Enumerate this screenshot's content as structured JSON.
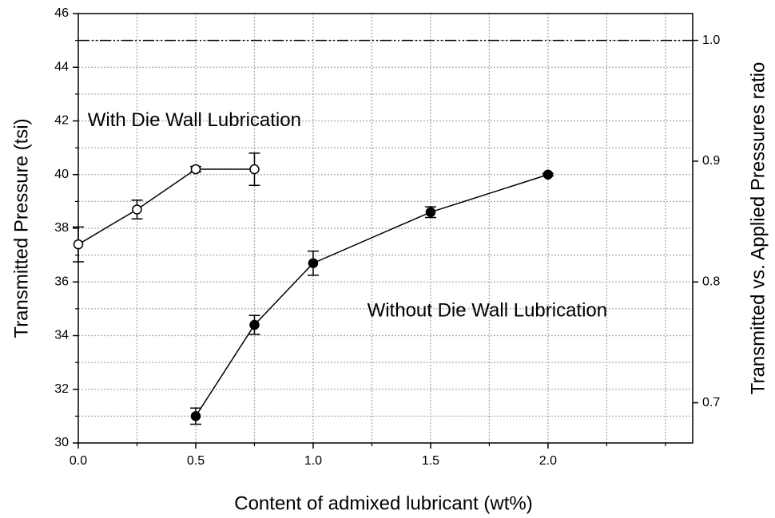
{
  "chart_data": {
    "type": "line",
    "xlabel": "Content of admixed lubricant (wt%)",
    "ylabel": "Transmitted Pressure (tsi)",
    "y2label": "Transmitted vs. Applied Pressures ratio",
    "xlim": [
      0,
      2.616
    ],
    "xticks": [
      {
        "value": 0,
        "label": "0.0"
      },
      0.5,
      {
        "value": 1,
        "label": "1.0"
      },
      1.5,
      {
        "value": 2,
        "label": "2.0"
      }
    ],
    "xminorticks": [
      0.25,
      0.75,
      1.25,
      1.75,
      2.25,
      2.5
    ],
    "ylim": [
      30,
      46
    ],
    "yticks": [
      30,
      32,
      34,
      36,
      38,
      40,
      42,
      44,
      46
    ],
    "yminorticks": [
      31,
      33,
      35,
      37,
      39,
      41,
      43,
      45
    ],
    "y2lim": [
      0.6667,
      1.0222
    ],
    "y2ticks": [
      0.7,
      0.8,
      0.9,
      {
        "value": 1,
        "label": "1.0"
      }
    ],
    "grid": true,
    "reference_line": {
      "axis": "y2",
      "value": 1.0
    },
    "annotations": [
      {
        "text": "With Die Wall Lubrication",
        "x": 0.04,
        "y": 42
      },
      {
        "text": "Without  Die Wall Lubrication",
        "x": 1.23,
        "y": 34.9
      }
    ],
    "series": [
      {
        "color": "#000000",
        "marker": "open",
        "x": [
          0,
          0.25,
          0.5,
          0.75
        ],
        "values": [
          37.4,
          38.7,
          40.2,
          40.2
        ],
        "errors": [
          0.65,
          0.35,
          0.1,
          0.6
        ]
      },
      {
        "color": "#000000",
        "marker": "filled",
        "x": [
          0.5,
          0.75,
          1.0,
          1.5,
          2.0
        ],
        "values": [
          31.0,
          34.4,
          36.7,
          38.6,
          40.0
        ],
        "errors": [
          0.3,
          0.35,
          0.45,
          0.2,
          0.05
        ]
      }
    ]
  }
}
